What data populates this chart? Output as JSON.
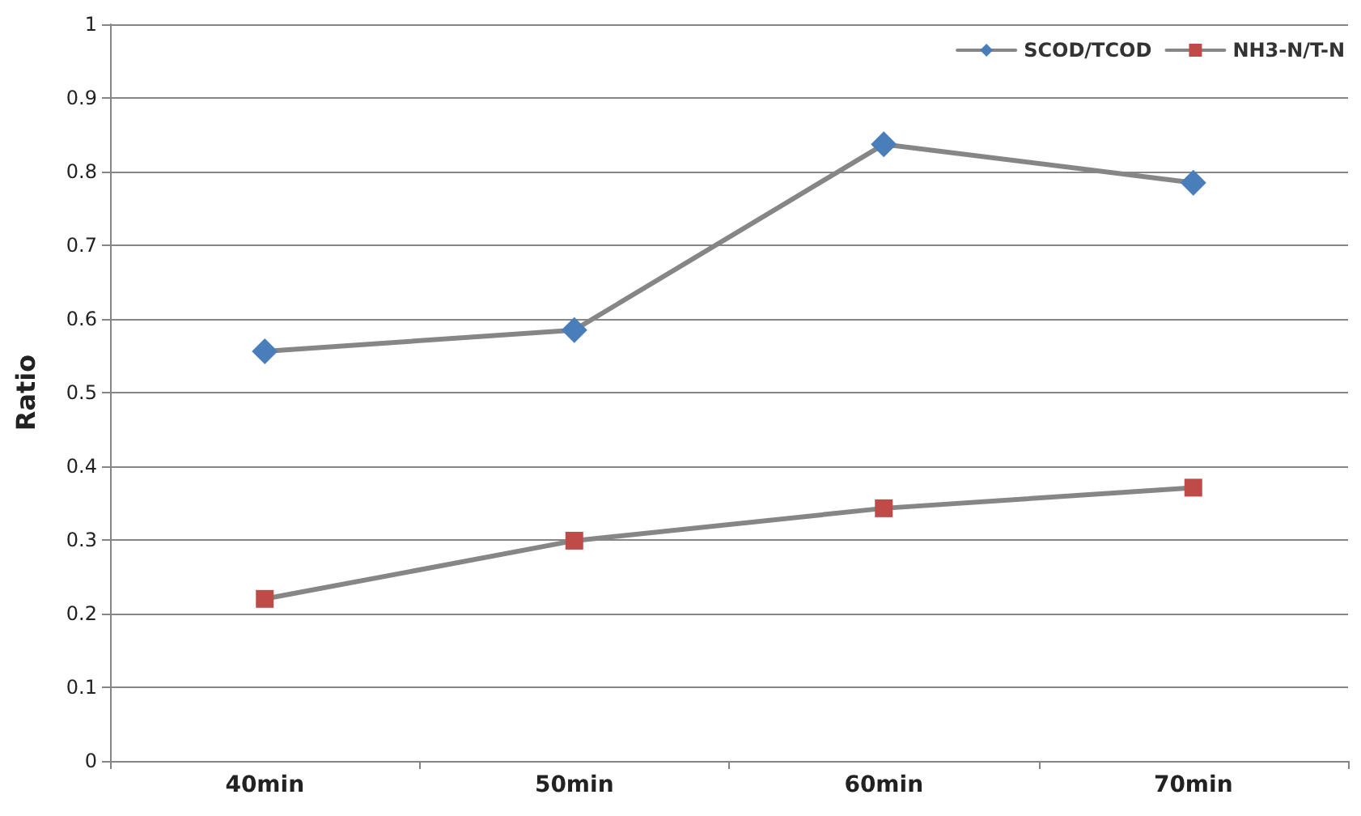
{
  "chart_data": {
    "type": "line",
    "ylabel": "Ratio",
    "categories": [
      "40min",
      "50min",
      "60min",
      "70min"
    ],
    "series": [
      {
        "name": "SCOD/TCOD",
        "color": "#4a7ebb",
        "marker": "diamond",
        "values": [
          0.556,
          0.585,
          0.837,
          0.785
        ]
      },
      {
        "name": "NH3-N/T-N",
        "color": "#be4b48",
        "marker": "square",
        "values": [
          0.22,
          0.299,
          0.343,
          0.371
        ]
      }
    ],
    "ylim": [
      0,
      1
    ],
    "yticks": [
      0,
      0.1,
      0.2,
      0.3,
      0.4,
      0.5,
      0.6,
      0.7,
      0.8,
      0.9,
      1
    ],
    "grid": "y",
    "legend": "top right",
    "line_style": "solid"
  }
}
